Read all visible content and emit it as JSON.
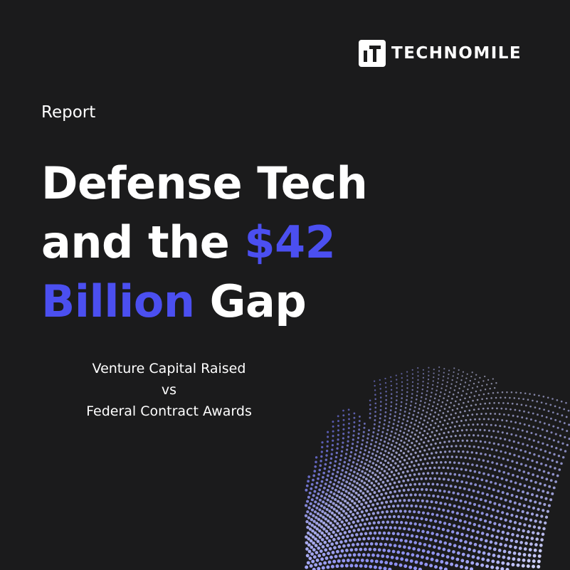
{
  "brand": {
    "name": "TECHNOMILE",
    "logo_icon": "technomile-logo-icon"
  },
  "report": {
    "eyebrow": "Report",
    "title_line1": "Defense Tech",
    "title_line2_prefix": "and the ",
    "title_line2_accent": "$42",
    "title_line3_accent": "Billion",
    "title_line3_suffix": " Gap",
    "subtitle_line1": "Venture Capital Raised",
    "subtitle_line2": "vs",
    "subtitle_line3": "Federal Contract Awards"
  },
  "colors": {
    "background": "#1b1b1c",
    "accent": "#4b4ff0",
    "text": "#ffffff",
    "dots_light": "#e8eaff",
    "dots_dark": "#4a4ff0"
  },
  "decoration": {
    "icon": "dotted-wave-graphic"
  }
}
